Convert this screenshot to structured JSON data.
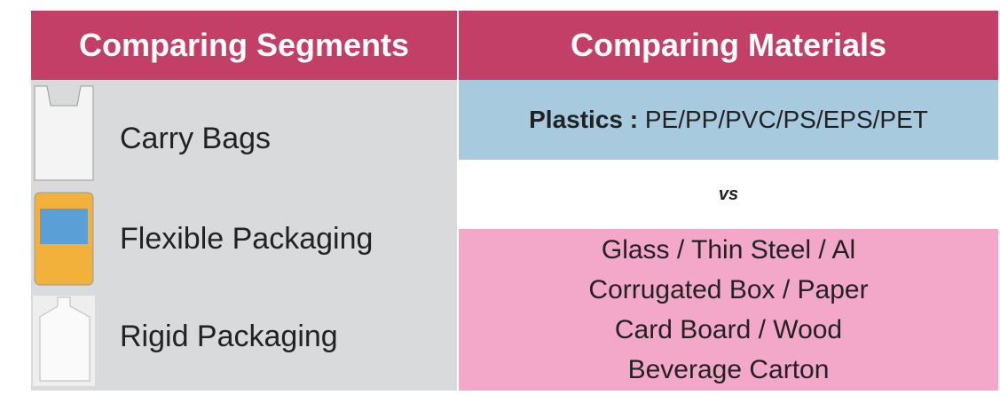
{
  "header": {
    "left": "Comparing Segments",
    "right": "Comparing Materials"
  },
  "segments": [
    "Carry Bags",
    "Flexible Packaging",
    "Rigid Packaging"
  ],
  "materials": {
    "plastics_label": "Plastics :",
    "plastics": "PE/PP/PVC/PS/EPS/PET",
    "vs": "vs",
    "alternatives": [
      "Glass / Thin Steel / Al",
      "Corrugated Box / Paper",
      "Card Board / Wood",
      "Beverage Carton"
    ]
  }
}
